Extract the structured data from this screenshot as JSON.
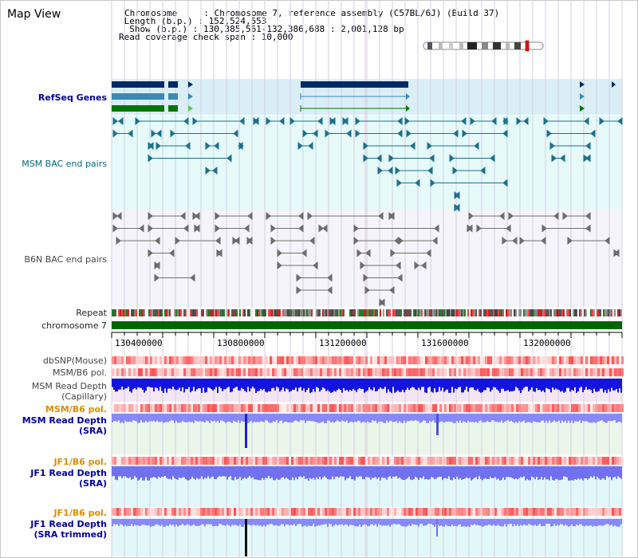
{
  "header": {
    "title": "Map View",
    "info_lines": [
      "Chromosome     : Chromosome 7, reference assembly (C57BL/6J) (Build 37)",
      " Length (b.p.) : 152,524,553",
      "  Show (b.p.) : 130,385,561-132,386,688 : 2,001,128 bp",
      "Read coverage check span : 10,000"
    ]
  },
  "tracks": {
    "refseq": "RefSeq Genes",
    "msm_bac": "MSM BAC end pairs",
    "b6n_bac": "B6N BAC end pairs",
    "repeat": "Repeat",
    "chromosome": "chromosome 7",
    "dbsnp": "dbSNP(Mouse)",
    "msm_b6_pol_1": "MSM/B6 pol.",
    "msm_read_depth_cap_1": "MSM Read Depth",
    "msm_read_depth_cap_2": "(Capillary)",
    "msm_b6_pol_2": "MSM/B6 pol.",
    "msm_read_depth_sra_1": "MSM Read Depth",
    "msm_read_depth_sra_2": "(SRA)",
    "jf1_b6_pol_1": "JF1/B6 pol.",
    "jf1_read_depth_sra_1": "JF1 Read Depth",
    "jf1_read_depth_sra_2": "(SRA)",
    "jf1_b6_pol_2": "JF1/B6 pol.",
    "jf1_read_depth_trim_1": "JF1 Read Depth",
    "jf1_read_depth_trim_2": "(SRA trimmed)"
  },
  "ruler": {
    "ticks": [
      "130400000",
      "130800000",
      "131200000",
      "131600000",
      "132000000"
    ]
  },
  "colors": {
    "refseq_bg": "#daeef8",
    "msm_bg": "#e6fafa",
    "b6n_bg": "#f4f4fa",
    "chromosome": "#006600",
    "read_depth_msm": "#0000e0",
    "read_depth_light": "#8888ff",
    "pol_red": "#ff3030",
    "orange_label": "#e08c00"
  }
}
